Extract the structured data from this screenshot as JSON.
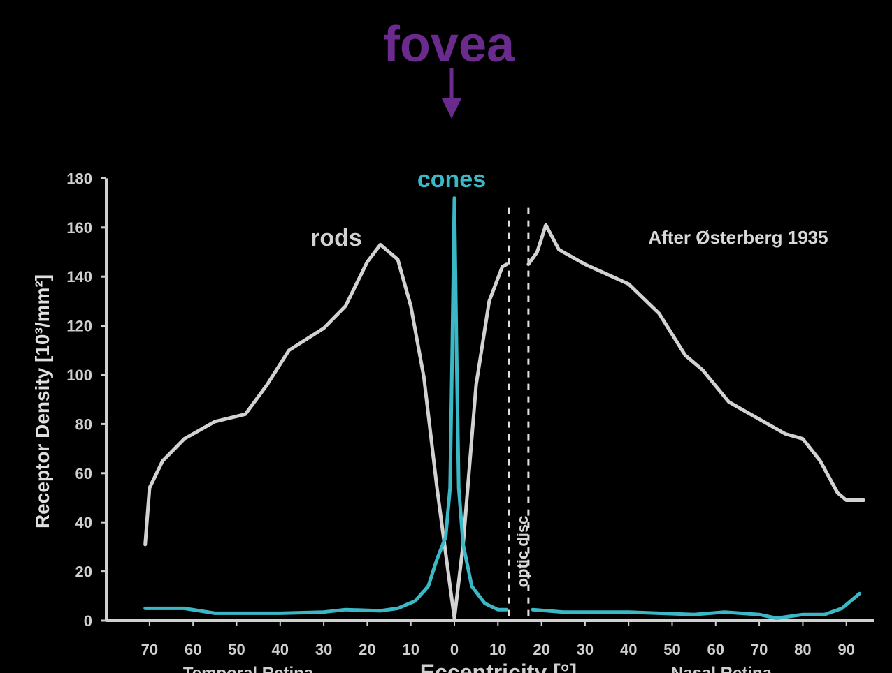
{
  "chart_data": {
    "type": "line",
    "title": "fovea",
    "annotation": "After Østerberg 1935",
    "optic_disc_label": "optic disc",
    "optic_disc_range": [
      12.5,
      17
    ],
    "xlabel": "Eccentricity [°]",
    "x_region_labels": {
      "left": "Temporal Retina",
      "right": "Nasal Retina"
    },
    "ylabel": "Receptor Density [10³/mm²]",
    "xlim": [
      -75,
      95
    ],
    "ylim": [
      0,
      180
    ],
    "x_ticks": [
      -70,
      -60,
      -50,
      -40,
      -30,
      -20,
      -10,
      0,
      10,
      20,
      30,
      40,
      50,
      60,
      70,
      80,
      90
    ],
    "x_tick_labels": [
      "70",
      "60",
      "50",
      "40",
      "30",
      "20",
      "10",
      "0",
      "10",
      "20",
      "30",
      "40",
      "50",
      "60",
      "70",
      "80",
      "90"
    ],
    "y_ticks": [
      0,
      20,
      40,
      60,
      80,
      100,
      120,
      140,
      160,
      180
    ],
    "y_tick_labels": [
      "0",
      "20",
      "40",
      "60",
      "80",
      "100",
      "120",
      "140",
      "160",
      "180"
    ],
    "grid": false,
    "colors": {
      "title": "#6b2a8e",
      "rods": "#d2d2d2",
      "cones": "#3ab8c6",
      "axes": "#d0d0d0"
    },
    "series": [
      {
        "name": "rods",
        "segments": [
          [
            [
              -71,
              31
            ],
            [
              -70,
              54
            ],
            [
              -67,
              65
            ],
            [
              -62,
              74
            ],
            [
              -55,
              81
            ],
            [
              -48,
              84
            ],
            [
              -43,
              96
            ],
            [
              -38,
              110
            ],
            [
              -30,
              119
            ],
            [
              -25,
              128
            ],
            [
              -20,
              146
            ],
            [
              -17,
              153
            ],
            [
              -13,
              147
            ],
            [
              -10,
              128
            ],
            [
              -7,
              99
            ],
            [
              -4,
              54
            ],
            [
              -1,
              14
            ],
            [
              0,
              1
            ],
            [
              2,
              31
            ],
            [
              5,
              96
            ],
            [
              8,
              130
            ],
            [
              11,
              144
            ],
            [
              12,
              145
            ]
          ],
          [
            [
              17,
              145
            ],
            [
              19,
              150
            ],
            [
              21,
              161
            ],
            [
              24,
              151
            ],
            [
              30,
              145
            ],
            [
              40,
              137
            ],
            [
              47,
              125
            ],
            [
              53,
              108
            ],
            [
              57,
              102
            ],
            [
              63,
              89
            ],
            [
              70,
              82
            ],
            [
              76,
              76
            ],
            [
              80,
              74
            ],
            [
              84,
              65
            ],
            [
              88,
              52
            ],
            [
              90,
              49
            ],
            [
              94,
              49
            ]
          ]
        ]
      },
      {
        "name": "cones",
        "segments": [
          [
            [
              -71,
              5
            ],
            [
              -62,
              5
            ],
            [
              -55,
              3
            ],
            [
              -40,
              3
            ],
            [
              -30,
              3.5
            ],
            [
              -25,
              4.5
            ],
            [
              -17,
              4
            ],
            [
              -13,
              5
            ],
            [
              -9,
              8
            ],
            [
              -6,
              14
            ],
            [
              -4,
              25
            ],
            [
              -2,
              34
            ],
            [
              -1,
              54
            ],
            [
              -0.5,
              110
            ],
            [
              0,
              172
            ],
            [
              0.5,
              110
            ],
            [
              1,
              54
            ],
            [
              2,
              31
            ],
            [
              4,
              14
            ],
            [
              7,
              7
            ],
            [
              10,
              4.5
            ],
            [
              12,
              4.5
            ]
          ],
          [
            [
              18,
              4.5
            ],
            [
              25,
              3.5
            ],
            [
              40,
              3.5
            ],
            [
              55,
              2.5
            ],
            [
              62,
              3.5
            ],
            [
              70,
              2.5
            ],
            [
              74,
              1
            ],
            [
              80,
              2.5
            ],
            [
              85,
              2.5
            ],
            [
              89,
              5
            ],
            [
              93,
              11
            ]
          ]
        ]
      }
    ]
  }
}
